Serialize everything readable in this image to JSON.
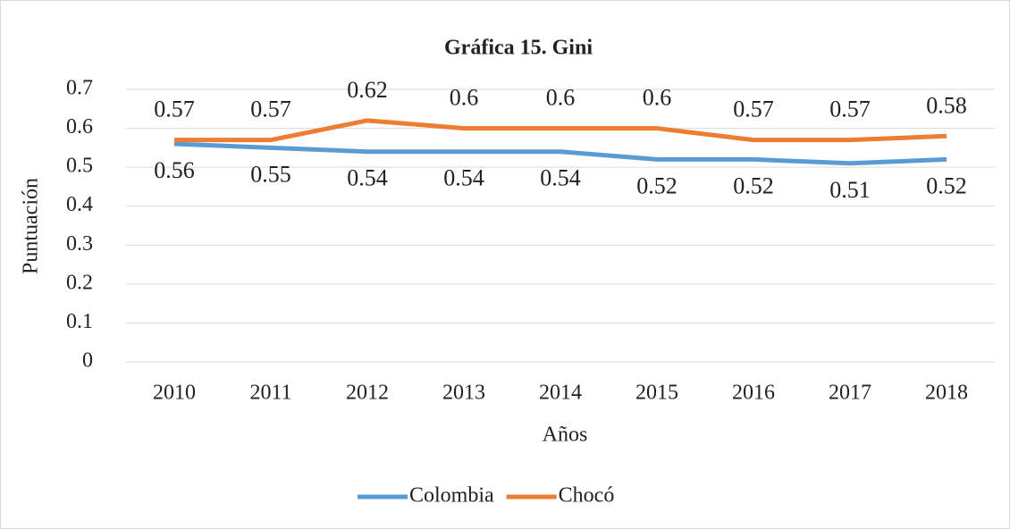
{
  "chart_data": {
    "type": "line",
    "title": "Gráfica 15. Gini",
    "x_label": "Años",
    "y_label": "Puntuación",
    "categories": [
      "2010",
      "2011",
      "2012",
      "2013",
      "2014",
      "2015",
      "2016",
      "2017",
      "2018"
    ],
    "series": [
      {
        "name": "Colombia",
        "color": "#5b9bd5",
        "values": [
          0.56,
          0.55,
          0.54,
          0.54,
          0.54,
          0.52,
          0.52,
          0.51,
          0.52
        ]
      },
      {
        "name": "Chocó",
        "color": "#ed7d31",
        "values": [
          0.57,
          0.57,
          0.62,
          0.6,
          0.6,
          0.6,
          0.57,
          0.57,
          0.58
        ]
      }
    ],
    "ylim": [
      0,
      0.7
    ],
    "yticks": [
      0,
      0.1,
      0.2,
      0.3,
      0.4,
      0.5,
      0.6,
      0.7
    ],
    "grid": true,
    "legend": "bottom"
  }
}
